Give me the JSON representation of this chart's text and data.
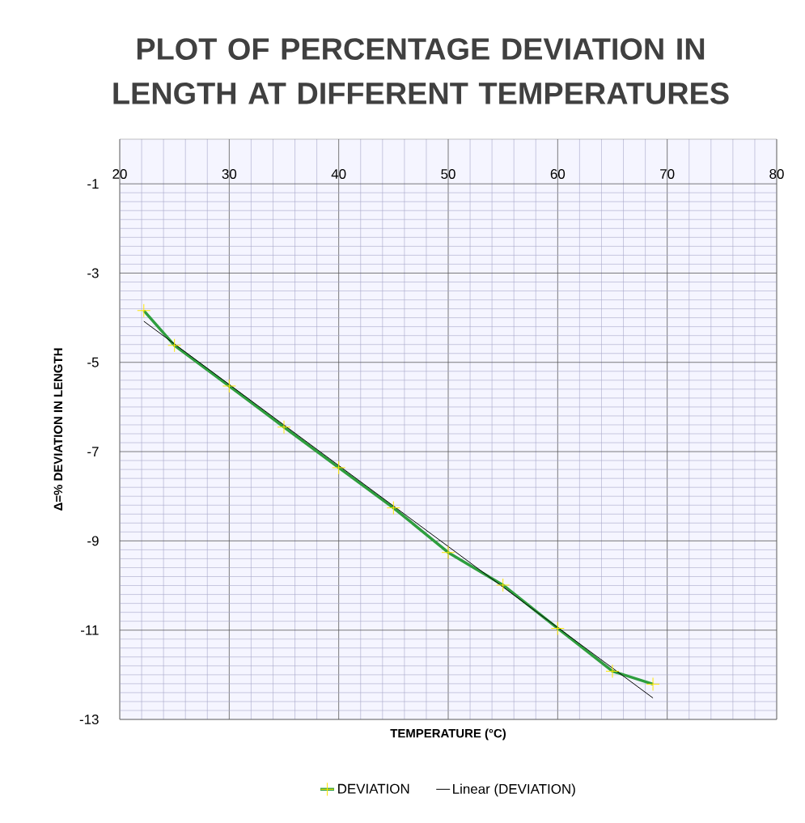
{
  "chart_data": {
    "type": "line",
    "title": "PLOT OF PERCENTAGE DEVIATION  IN LENGTH AT DIFFERENT TEMPERATURES",
    "xlabel": "TEMPERATURE (°C)",
    "ylabel": "Δ=% DEVIATION IN LENGTH",
    "x": [
      22.2,
      25,
      30,
      35,
      40,
      45,
      50,
      55,
      60,
      65,
      68.7
    ],
    "series": [
      {
        "name": "DEVIATION",
        "color": "#2e9e3e",
        "marker": "cross",
        "values": [
          -3.84,
          -4.62,
          -5.53,
          -6.45,
          -7.36,
          -8.26,
          -9.26,
          -9.99,
          -10.96,
          -11.92,
          -12.21
        ]
      },
      {
        "name": "Linear (DEVIATION)",
        "color": "#000000",
        "type": "line",
        "marker": "none",
        "x": [
          22.2,
          68.7
        ],
        "values": [
          -4.08,
          -12.52
        ]
      }
    ],
    "xlim": [
      20,
      80
    ],
    "xticks": [
      20,
      30,
      40,
      50,
      60,
      70,
      80
    ],
    "ylim": [
      -13,
      0
    ],
    "yticks": [
      -1,
      -3,
      -5,
      -7,
      -9,
      -11,
      -13
    ],
    "grid": true,
    "legend": "bottom"
  }
}
